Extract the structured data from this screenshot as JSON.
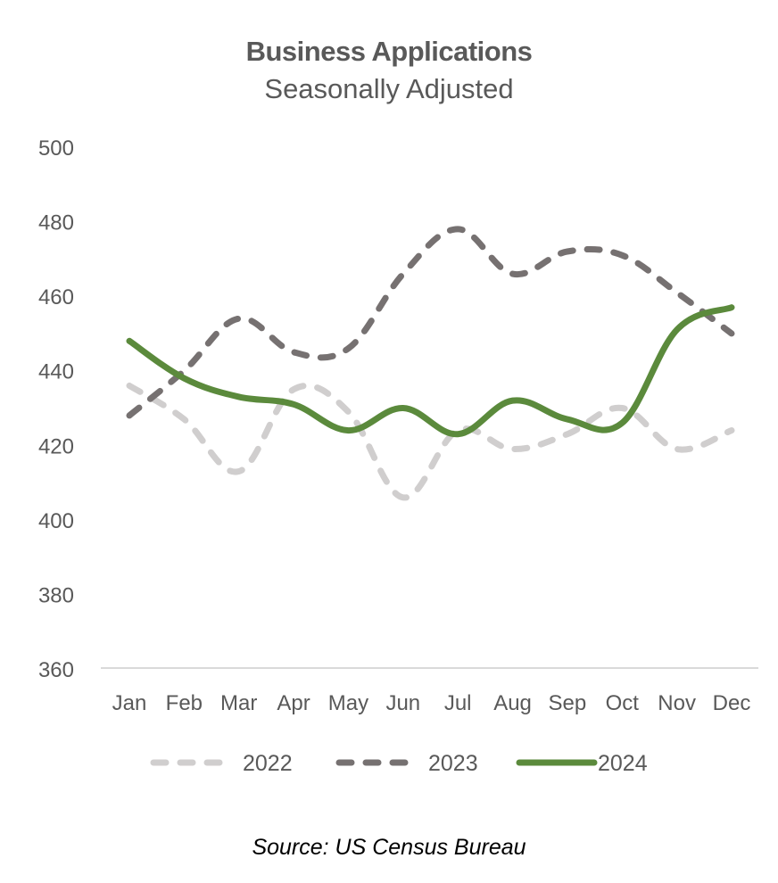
{
  "chart_data": {
    "type": "line",
    "title": "Business Applications",
    "subtitle": "Seasonally Adjusted",
    "xlabel": "",
    "ylabel": "",
    "categories": [
      "Jan",
      "Feb",
      "Mar",
      "Apr",
      "May",
      "Jun",
      "Jul",
      "Aug",
      "Sep",
      "Oct",
      "Nov",
      "Dec"
    ],
    "ylim": [
      360,
      500
    ],
    "yticks": [
      360,
      380,
      400,
      420,
      440,
      460,
      480,
      500
    ],
    "grid": false,
    "legend_position": "bottom",
    "series": [
      {
        "name": "2022",
        "style": "dashed",
        "color": "#D0CECE",
        "values": [
          436,
          427,
          413,
          435,
          429,
          406,
          424,
          419,
          423,
          430,
          419,
          424
        ]
      },
      {
        "name": "2023",
        "style": "dashed",
        "color": "#767171",
        "values": [
          428,
          440,
          454,
          445,
          446,
          466,
          478,
          466,
          472,
          471,
          461,
          450
        ]
      },
      {
        "name": "2024",
        "style": "solid",
        "color": "#5B8A3C",
        "values": [
          448,
          438,
          433,
          431,
          424,
          430,
          423,
          432,
          427,
          426,
          451,
          457
        ]
      }
    ],
    "source": "Source: US Census Bureau"
  }
}
